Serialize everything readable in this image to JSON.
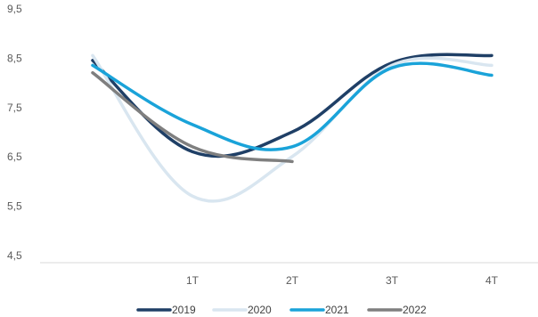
{
  "chart_data": {
    "type": "line",
    "title": "",
    "xlabel": "",
    "ylabel": "",
    "categories": [
      "",
      "1T",
      "2T",
      "3T",
      "4T"
    ],
    "x_tick_labels": [
      "1T",
      "2T",
      "3T",
      "4T"
    ],
    "y_tick_labels": [
      "4,5",
      "5,5",
      "6,5",
      "7,5",
      "8,5",
      "9,5"
    ],
    "ylim": [
      4.5,
      9.5
    ],
    "grid": false,
    "legend_position": "bottom",
    "series": [
      {
        "name": "2019",
        "color": "#1f3f66",
        "values": [
          8.6,
          6.75,
          7.15,
          8.55,
          8.7
        ]
      },
      {
        "name": "2020",
        "color": "#d9e6f0",
        "values": [
          8.7,
          5.85,
          6.65,
          8.5,
          8.5
        ]
      },
      {
        "name": "2021",
        "color": "#1aa3d9",
        "values": [
          8.5,
          7.3,
          6.85,
          8.45,
          8.3
        ]
      },
      {
        "name": "2022",
        "color": "#7f7f7f",
        "values": [
          8.35,
          6.85,
          6.55,
          null,
          null
        ]
      }
    ]
  }
}
